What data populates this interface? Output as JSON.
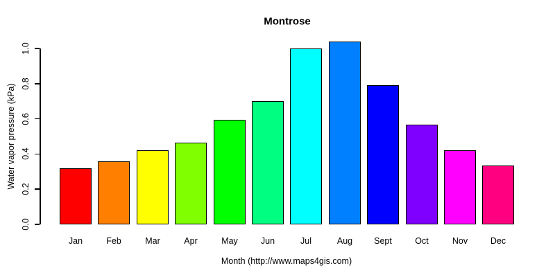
{
  "chart_data": {
    "type": "bar",
    "title": "Montrose",
    "xlabel": "Month (http://www.maps4gis.com)",
    "ylabel": "Water vapor pressure (kPa)",
    "categories": [
      "Jan",
      "Feb",
      "Mar",
      "Apr",
      "May",
      "Jun",
      "Jul",
      "Aug",
      "Sept",
      "Oct",
      "Nov",
      "Dec"
    ],
    "values": [
      0.32,
      0.36,
      0.42,
      0.465,
      0.595,
      0.7,
      1.0,
      1.04,
      0.79,
      0.565,
      0.42,
      0.335
    ],
    "bar_colors": [
      "#FF0000",
      "#FF8000",
      "#FFFF00",
      "#80FF00",
      "#00FF00",
      "#00FF80",
      "#00FFFF",
      "#0080FF",
      "#0000FF",
      "#8000FF",
      "#FF00FF",
      "#FF0080"
    ],
    "bar_border_color": "#000000",
    "ylim": [
      0.0,
      1.0
    ],
    "yticks": [
      0.0,
      0.2,
      0.4,
      0.6,
      0.8,
      1.0
    ],
    "ytick_labels": [
      "0.0",
      "0.2",
      "0.4",
      "0.6",
      "0.8",
      "1.0"
    ],
    "grid": false,
    "legend": null,
    "background_color": "#FFFFFF",
    "text_color": "#000000"
  }
}
